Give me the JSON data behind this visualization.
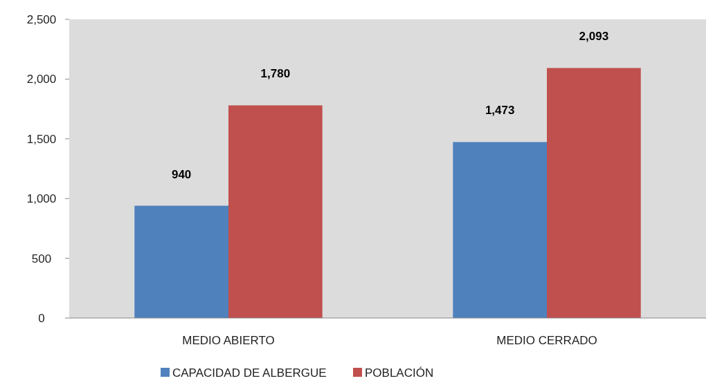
{
  "chart_data": {
    "type": "bar",
    "categories": [
      "MEDIO ABIERTO",
      "MEDIO CERRADO"
    ],
    "series": [
      {
        "name": "CAPACIDAD DE ALBERGUE",
        "color": "#4f81bd",
        "values": [
          940,
          1473
        ],
        "value_labels": [
          "940",
          "1,473"
        ]
      },
      {
        "name": "POBLACIÓN",
        "color": "#c0504d",
        "values": [
          1780,
          2093
        ],
        "value_labels": [
          "1,780",
          "2,093"
        ]
      }
    ],
    "ylim": [
      0,
      2500
    ],
    "yticks": [
      {
        "value": 0,
        "label": "0"
      },
      {
        "value": 500,
        "label": "500"
      },
      {
        "value": 1000,
        "label": "1,000"
      },
      {
        "value": 1500,
        "label": "1,500"
      },
      {
        "value": 2000,
        "label": "2,000"
      },
      {
        "value": 2500,
        "label": "2,500"
      }
    ],
    "legend": "bottom",
    "grid": false
  }
}
